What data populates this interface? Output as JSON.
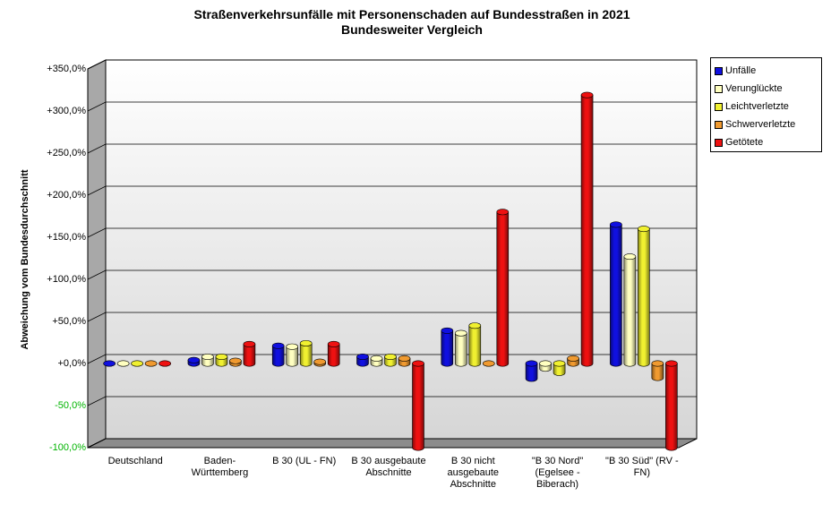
{
  "chart_data": {
    "type": "bar",
    "title": "Straßenverkehrsunfälle mit Personenschaden auf Bundesstraßen in 2021",
    "subtitle": "Bundesweiter Vergleich",
    "ylabel": "Abweichung vom Bundesdurchschnitt",
    "xlabel": "",
    "ylim": [
      -100,
      350
    ],
    "ytick_values": [
      -100,
      -50,
      0,
      50,
      100,
      150,
      200,
      250,
      300,
      350
    ],
    "ytick_labels": [
      "-100,0%",
      "-50,0%",
      "+0,0%",
      "+50,0%",
      "+100,0%",
      "+150,0%",
      "+200,0%",
      "+250,0%",
      "+300,0%",
      "+350,0%"
    ],
    "grid": true,
    "legend_position": "right",
    "categories": [
      [
        "Deutschland"
      ],
      [
        "Baden-",
        "Württemberg"
      ],
      [
        "B 30 (UL - FN)"
      ],
      [
        "B 30 ausgebaute",
        "Abschnitte"
      ],
      [
        "B 30 nicht",
        "ausgebaute",
        "Abschnitte"
      ],
      [
        "\"B 30 Nord\"",
        "(Egelsee -",
        "Biberach)"
      ],
      [
        "\"B 30 Süd\" (RV -",
        "FN)"
      ]
    ],
    "series": [
      {
        "name": "Unfälle",
        "color": "#1010e0",
        "values": [
          0,
          4,
          21,
          8,
          39,
          -18,
          165
        ]
      },
      {
        "name": "Verunglückte",
        "color": "#ffffc0",
        "values": [
          0,
          8,
          20,
          6,
          36,
          -6,
          127
        ]
      },
      {
        "name": "Leichtverletzte",
        "color": "#f0f030",
        "values": [
          0,
          8,
          24,
          8,
          45,
          -11,
          160
        ]
      },
      {
        "name": "Schwerverletzte",
        "color": "#f09a30",
        "values": [
          0,
          3,
          2,
          6,
          0,
          6,
          -17
        ]
      },
      {
        "name": "Getötete",
        "color": "#ee1111",
        "values": [
          0,
          23,
          23,
          -100,
          180,
          319,
          -100
        ]
      }
    ]
  }
}
